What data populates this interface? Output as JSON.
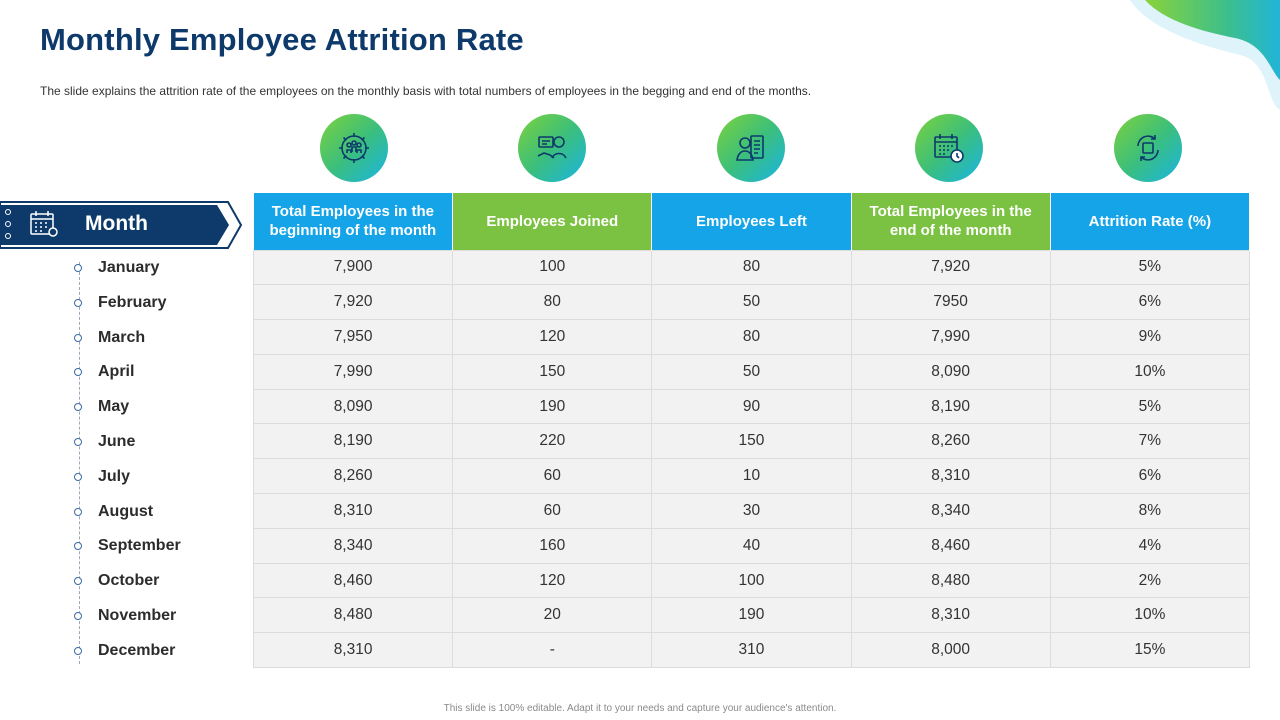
{
  "title": "Monthly Employee Attrition Rate",
  "subtitle": "The slide explains the attrition rate of the employees on the monthly basis with total numbers of employees in the begging and end of the months.",
  "month_header": "Month",
  "columns": [
    {
      "label": "Total Employees in the beginning of the month",
      "color": "#15a4e8",
      "icon": "team-gear-icon"
    },
    {
      "label": "Employees Joined",
      "color": "#7cc242",
      "icon": "handshake-person-icon"
    },
    {
      "label": "Employees Left",
      "color": "#15a4e8",
      "icon": "employee-document-icon"
    },
    {
      "label": "Total Employees in the end of the month",
      "color": "#7cc242",
      "icon": "calendar-clock-icon"
    },
    {
      "label": "Attrition Rate (%)",
      "color": "#15a4e8",
      "icon": "refresh-cycle-icon"
    }
  ],
  "rows": [
    {
      "month": "January",
      "cells": [
        "7,900",
        "100",
        "80",
        "7,920",
        "5%"
      ]
    },
    {
      "month": "February",
      "cells": [
        "7,920",
        "80",
        "50",
        "7950",
        "6%"
      ]
    },
    {
      "month": "March",
      "cells": [
        "7,950",
        "120",
        "80",
        "7,990",
        "9%"
      ]
    },
    {
      "month": "April",
      "cells": [
        "7,990",
        "150",
        "50",
        "8,090",
        "10%"
      ]
    },
    {
      "month": "May",
      "cells": [
        "8,090",
        "190",
        "90",
        "8,190",
        "5%"
      ]
    },
    {
      "month": "June",
      "cells": [
        "8,190",
        "220",
        "150",
        "8,260",
        "7%"
      ]
    },
    {
      "month": "July",
      "cells": [
        "8,260",
        "60",
        "10",
        "8,310",
        "6%"
      ]
    },
    {
      "month": "August",
      "cells": [
        "8,310",
        "60",
        "30",
        "8,340",
        "8%"
      ]
    },
    {
      "month": "September",
      "cells": [
        "8,340",
        "160",
        "40",
        "8,460",
        "4%"
      ]
    },
    {
      "month": "October",
      "cells": [
        "8,460",
        "120",
        "100",
        "8,480",
        "2%"
      ]
    },
    {
      "month": "November",
      "cells": [
        "8,480",
        "20",
        "190",
        "8,310",
        "10%"
      ]
    },
    {
      "month": "December",
      "cells": [
        "8,310",
        "-",
        "310",
        "8,000",
        "15%"
      ]
    }
  ],
  "footer": "This slide is 100% editable. Adapt it to your needs and capture your audience's attention.",
  "colors": {
    "title": "#0d3a6b",
    "banner": "#0d3a6b",
    "blue": "#15a4e8",
    "green": "#7cc242"
  }
}
